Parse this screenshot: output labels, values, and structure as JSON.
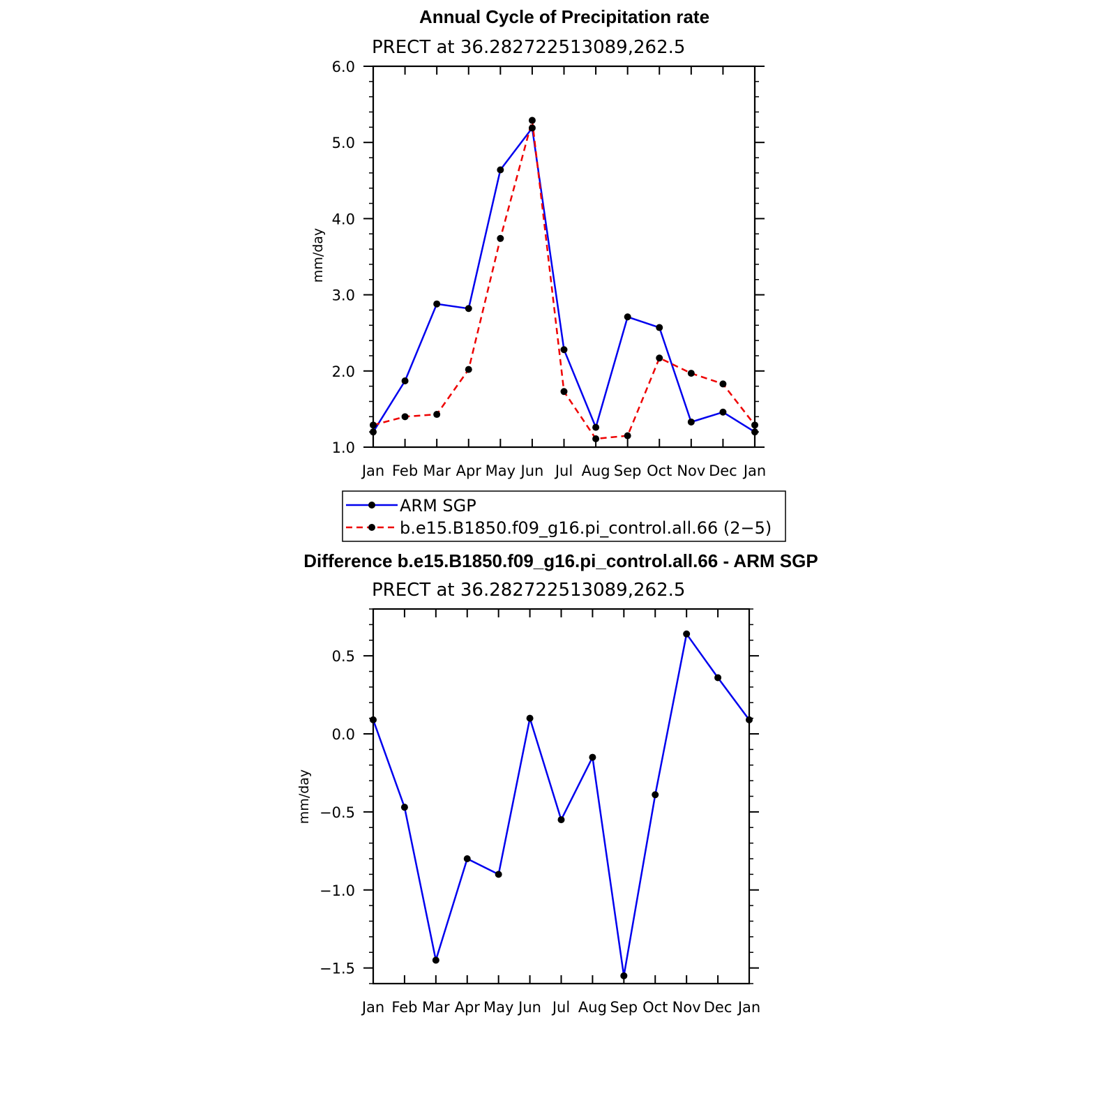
{
  "chart_data": [
    {
      "type": "line",
      "title": "Annual Cycle of Precipitation rate",
      "subtitle": "PRECT at 36.282722513089,262.5",
      "xlabel": "",
      "ylabel": "mm/day",
      "categories": [
        "Jan",
        "Feb",
        "Mar",
        "Apr",
        "May",
        "Jun",
        "Jul",
        "Aug",
        "Sep",
        "Oct",
        "Nov",
        "Dec",
        "Jan"
      ],
      "ylim": [
        1.0,
        6.0
      ],
      "yticks": [
        1.0,
        2.0,
        3.0,
        4.0,
        5.0,
        6.0
      ],
      "ytick_labels": [
        "1.0",
        "2.0",
        "3.0",
        "4.0",
        "5.0",
        "6.0"
      ],
      "series": [
        {
          "name": "ARM SGP",
          "color": "#0000ee",
          "dashed": false,
          "values": [
            1.2,
            1.87,
            2.88,
            2.82,
            4.64,
            5.19,
            2.28,
            1.26,
            2.71,
            2.57,
            1.33,
            1.46,
            1.2
          ]
        },
        {
          "name": "b.e15.B1850.f09_g16.pi_control.all.66 (2−5)",
          "color": "#ee0000",
          "dashed": true,
          "values": [
            1.29,
            1.4,
            1.43,
            2.02,
            3.74,
            5.29,
            1.73,
            1.11,
            1.15,
            2.17,
            1.97,
            1.83,
            1.29
          ]
        }
      ],
      "legend": {
        "position": "below"
      }
    },
    {
      "type": "line",
      "title": "Difference b.e15.B1850.f09_g16.pi_control.all.66 - ARM SGP",
      "subtitle": "PRECT at 36.282722513089,262.5",
      "xlabel": "",
      "ylabel": "mm/day",
      "categories": [
        "Jan",
        "Feb",
        "Mar",
        "Apr",
        "May",
        "Jun",
        "Jul",
        "Aug",
        "Sep",
        "Oct",
        "Nov",
        "Dec",
        "Jan"
      ],
      "ylim": [
        -1.6,
        0.8
      ],
      "yticks": [
        -1.5,
        -1.0,
        -0.5,
        0.0,
        0.5
      ],
      "ytick_labels": [
        "−1.5",
        "−1.0",
        "−0.5",
        "0.0",
        "0.5"
      ],
      "series": [
        {
          "name": "Difference",
          "color": "#0000ee",
          "dashed": false,
          "values": [
            0.09,
            -0.47,
            -1.45,
            -0.8,
            -0.9,
            0.1,
            -0.55,
            -0.15,
            -1.55,
            -0.39,
            0.64,
            0.36,
            0.09
          ]
        }
      ]
    }
  ]
}
